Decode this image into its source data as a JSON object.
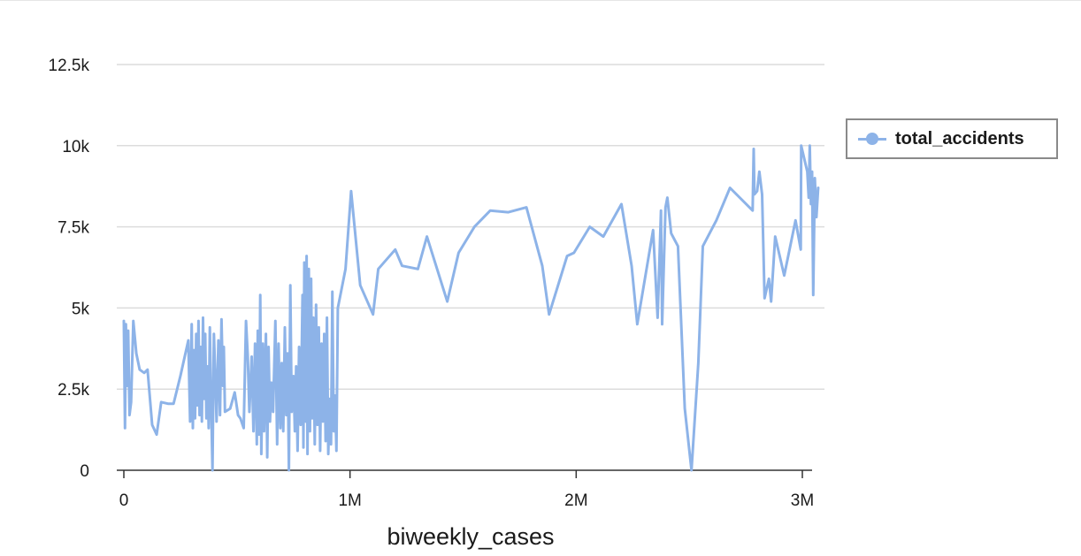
{
  "chart_data": {
    "type": "line",
    "title": "",
    "xlabel": "biweekly_cases",
    "ylabel": "",
    "xlim": [
      0,
      3100000
    ],
    "ylim": [
      0,
      12500
    ],
    "x_ticks": [
      {
        "value": 0,
        "label": "0"
      },
      {
        "value": 1000000,
        "label": "1M"
      },
      {
        "value": 2000000,
        "label": "2M"
      },
      {
        "value": 3000000,
        "label": "3M"
      }
    ],
    "y_ticks": [
      {
        "value": 0,
        "label": "0"
      },
      {
        "value": 2500,
        "label": "2.5k"
      },
      {
        "value": 5000,
        "label": "5k"
      },
      {
        "value": 7500,
        "label": "7.5k"
      },
      {
        "value": 10000,
        "label": "10k"
      },
      {
        "value": 12500,
        "label": "12.5k"
      }
    ],
    "grid": true,
    "legend_position": "right",
    "color": "#8db3e8",
    "series": [
      {
        "name": "total_accidents",
        "points": [
          [
            0,
            4600
          ],
          [
            5000,
            1300
          ],
          [
            9000,
            4500
          ],
          [
            14000,
            2600
          ],
          [
            19000,
            4300
          ],
          [
            25000,
            1700
          ],
          [
            32000,
            2100
          ],
          [
            42000,
            4600
          ],
          [
            55000,
            3600
          ],
          [
            70000,
            3100
          ],
          [
            90000,
            3000
          ],
          [
            105000,
            3100
          ],
          [
            125000,
            1400
          ],
          [
            145000,
            1100
          ],
          [
            165000,
            2100
          ],
          [
            195000,
            2050
          ],
          [
            220000,
            2050
          ],
          [
            250000,
            2900
          ],
          [
            285000,
            4000
          ],
          [
            293000,
            1500
          ],
          [
            300000,
            4500
          ],
          [
            305000,
            1300
          ],
          [
            310000,
            3700
          ],
          [
            315000,
            1600
          ],
          [
            320000,
            4200
          ],
          [
            325000,
            2000
          ],
          [
            330000,
            4600
          ],
          [
            335000,
            1700
          ],
          [
            340000,
            3800
          ],
          [
            345000,
            1500
          ],
          [
            350000,
            4700
          ],
          [
            355000,
            2200
          ],
          [
            360000,
            4200
          ],
          [
            365000,
            1600
          ],
          [
            370000,
            3200
          ],
          [
            375000,
            1300
          ],
          [
            380000,
            4400
          ],
          [
            385000,
            2500
          ],
          [
            392000,
            0
          ],
          [
            398000,
            4200
          ],
          [
            405000,
            2800
          ],
          [
            410000,
            1500
          ],
          [
            418000,
            4000
          ],
          [
            425000,
            1700
          ],
          [
            432000,
            4650
          ],
          [
            438000,
            2600
          ],
          [
            442000,
            3800
          ],
          [
            447000,
            1800
          ],
          [
            470000,
            1900
          ],
          [
            490000,
            2400
          ],
          [
            505000,
            1700
          ],
          [
            515000,
            1600
          ],
          [
            530000,
            1300
          ],
          [
            540000,
            4600
          ],
          [
            548000,
            3500
          ],
          [
            555000,
            1800
          ],
          [
            565000,
            3500
          ],
          [
            573000,
            1200
          ],
          [
            580000,
            3900
          ],
          [
            588000,
            800
          ],
          [
            592000,
            4300
          ],
          [
            598000,
            1100
          ],
          [
            603000,
            5400
          ],
          [
            608000,
            500
          ],
          [
            615000,
            3900
          ],
          [
            620000,
            1200
          ],
          [
            628000,
            4200
          ],
          [
            634000,
            400
          ],
          [
            640000,
            3800
          ],
          [
            646000,
            1500
          ],
          [
            652000,
            2700
          ],
          [
            660000,
            1800
          ],
          [
            670000,
            4600
          ],
          [
            678000,
            800
          ],
          [
            684000,
            3900
          ],
          [
            692000,
            1300
          ],
          [
            698000,
            3300
          ],
          [
            705000,
            1200
          ],
          [
            712000,
            4400
          ],
          [
            718000,
            1700
          ],
          [
            724000,
            3600
          ],
          [
            730000,
            0
          ],
          [
            736000,
            5700
          ],
          [
            742000,
            1800
          ],
          [
            750000,
            2900
          ],
          [
            756000,
            1200
          ],
          [
            762000,
            3200
          ],
          [
            768000,
            600
          ],
          [
            775000,
            3800
          ],
          [
            782000,
            1400
          ],
          [
            790000,
            5400
          ],
          [
            794000,
            700
          ],
          [
            798000,
            6400
          ],
          [
            803000,
            1500
          ],
          [
            808000,
            6600
          ],
          [
            812000,
            500
          ],
          [
            818000,
            6200
          ],
          [
            823000,
            1200
          ],
          [
            828000,
            5900
          ],
          [
            833000,
            1600
          ],
          [
            838000,
            4700
          ],
          [
            844000,
            800
          ],
          [
            850000,
            5100
          ],
          [
            856000,
            1400
          ],
          [
            862000,
            4400
          ],
          [
            868000,
            600
          ],
          [
            874000,
            3900
          ],
          [
            880000,
            1500
          ],
          [
            886000,
            4200
          ],
          [
            892000,
            900
          ],
          [
            898000,
            4700
          ],
          [
            904000,
            500
          ],
          [
            910000,
            2200
          ],
          [
            916000,
            800
          ],
          [
            922000,
            5500
          ],
          [
            928000,
            1200
          ],
          [
            934000,
            2300
          ],
          [
            940000,
            600
          ],
          [
            946000,
            5000
          ],
          [
            980000,
            6200
          ],
          [
            1005000,
            8600
          ],
          [
            1045000,
            5700
          ],
          [
            1102000,
            4800
          ],
          [
            1125000,
            6200
          ],
          [
            1200000,
            6800
          ],
          [
            1230000,
            6300
          ],
          [
            1300000,
            6200
          ],
          [
            1340000,
            7200
          ],
          [
            1430000,
            5200
          ],
          [
            1480000,
            6700
          ],
          [
            1550000,
            7500
          ],
          [
            1620000,
            8000
          ],
          [
            1700000,
            7950
          ],
          [
            1780000,
            8100
          ],
          [
            1850000,
            6300
          ],
          [
            1880000,
            4800
          ],
          [
            1960000,
            6600
          ],
          [
            1990000,
            6700
          ],
          [
            2060000,
            7500
          ],
          [
            2120000,
            7200
          ],
          [
            2200000,
            8200
          ],
          [
            2245000,
            6300
          ],
          [
            2270000,
            4500
          ],
          [
            2340000,
            7400
          ],
          [
            2360000,
            4700
          ],
          [
            2375000,
            8000
          ],
          [
            2380000,
            4500
          ],
          [
            2395000,
            8100
          ],
          [
            2403000,
            8400
          ],
          [
            2420000,
            7300
          ],
          [
            2450000,
            6900
          ],
          [
            2480000,
            1900
          ],
          [
            2510000,
            0
          ],
          [
            2540000,
            3300
          ],
          [
            2560000,
            6900
          ],
          [
            2620000,
            7700
          ],
          [
            2680000,
            8700
          ],
          [
            2780000,
            8000
          ],
          [
            2785000,
            9900
          ],
          [
            2788000,
            8500
          ],
          [
            2800000,
            8600
          ],
          [
            2810000,
            9200
          ],
          [
            2822000,
            8500
          ],
          [
            2833000,
            5300
          ],
          [
            2852000,
            5900
          ],
          [
            2862000,
            5200
          ],
          [
            2880000,
            7200
          ],
          [
            2920000,
            6000
          ],
          [
            2970000,
            7700
          ],
          [
            2993000,
            6800
          ],
          [
            2995000,
            10000
          ],
          [
            3022000,
            9200
          ],
          [
            3028000,
            8400
          ],
          [
            3033000,
            10000
          ],
          [
            3038000,
            8200
          ],
          [
            3043000,
            9200
          ],
          [
            3048000,
            5400
          ],
          [
            3055000,
            9000
          ],
          [
            3062000,
            7800
          ],
          [
            3070000,
            8700
          ]
        ]
      }
    ]
  }
}
